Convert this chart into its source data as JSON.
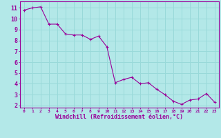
{
  "x": [
    0,
    1,
    2,
    3,
    4,
    5,
    6,
    7,
    8,
    9,
    10,
    11,
    12,
    13,
    14,
    15,
    16,
    17,
    18,
    19,
    20,
    21,
    22,
    23
  ],
  "y": [
    10.8,
    11.0,
    11.1,
    9.5,
    9.5,
    8.6,
    8.5,
    8.5,
    8.1,
    8.4,
    7.4,
    4.1,
    4.4,
    4.6,
    4.0,
    4.1,
    3.5,
    3.0,
    2.4,
    2.1,
    2.5,
    2.6,
    3.1,
    2.3
  ],
  "line_color": "#990099",
  "marker_color": "#990099",
  "bg_color": "#b3e8e8",
  "grid_color": "#99d9d9",
  "axis_label_color": "#990099",
  "tick_label_color": "#990099",
  "xlabel": "Windchill (Refroidissement éolien,°C)",
  "xlim": [
    -0.5,
    23.5
  ],
  "ylim": [
    1.8,
    11.6
  ],
  "yticks": [
    2,
    3,
    4,
    5,
    6,
    7,
    8,
    9,
    10,
    11
  ],
  "xticks": [
    0,
    1,
    2,
    3,
    4,
    5,
    6,
    7,
    8,
    9,
    10,
    11,
    12,
    13,
    14,
    15,
    16,
    17,
    18,
    19,
    20,
    21,
    22,
    23
  ],
  "xtick_labels": [
    "0",
    "1",
    "2",
    "3",
    "4",
    "5",
    "6",
    "7",
    "8",
    "9",
    "10",
    "11",
    "12",
    "13",
    "14",
    "15",
    "16",
    "17",
    "18",
    "19",
    "20",
    "21",
    "22",
    "23"
  ],
  "spine_color": "#990099",
  "marker_style": "+"
}
